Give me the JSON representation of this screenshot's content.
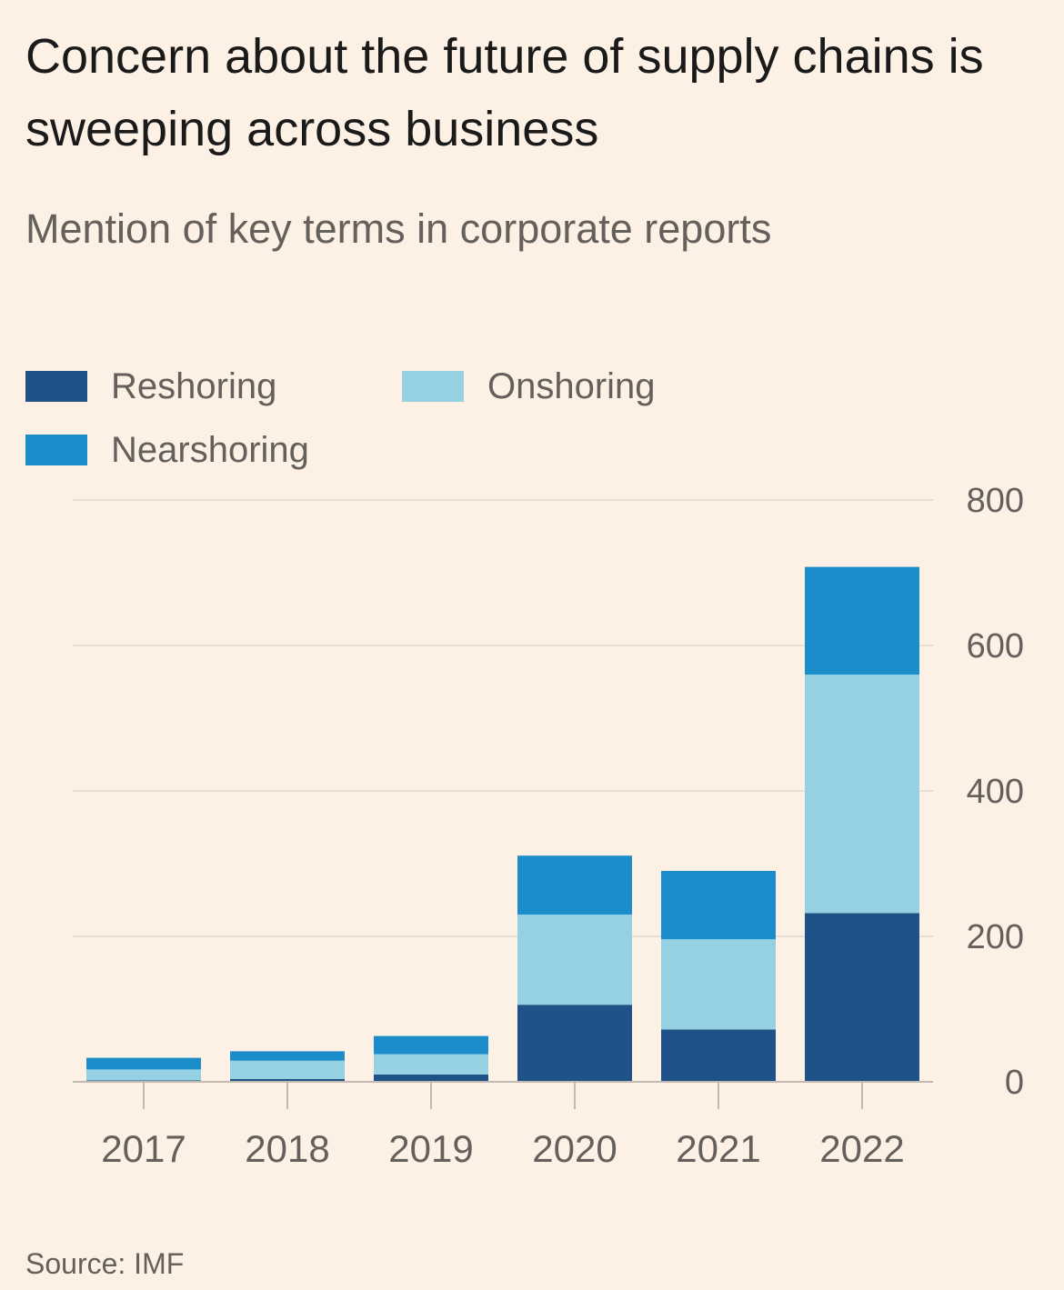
{
  "title": "Concern about the future of supply chains is sweeping across business",
  "subtitle": "Mention of key terms in corporate reports",
  "source": "Source: IMF",
  "legend": [
    {
      "label": "Reshoring",
      "color": "#1f5289"
    },
    {
      "label": "Onshoring",
      "color": "#96d1e3"
    },
    {
      "label": "Nearshoring",
      "color": "#1b8dcb"
    }
  ],
  "colors": {
    "background": "#fdf1e6",
    "gridline": "#e8ddd2",
    "axis": "#c2b9b1",
    "text": "#66605c"
  },
  "chart_data": {
    "type": "bar",
    "stacked": true,
    "categories": [
      "2017",
      "2018",
      "2019",
      "2020",
      "2021",
      "2022"
    ],
    "series": [
      {
        "name": "Reshoring",
        "color": "#1f5289",
        "values": [
          2,
          4,
          10,
          106,
          72,
          232
        ]
      },
      {
        "name": "Onshoring",
        "color": "#96d1e3",
        "values": [
          15,
          25,
          28,
          124,
          124,
          328
        ]
      },
      {
        "name": "Nearshoring",
        "color": "#1b8dcb",
        "values": [
          16,
          13,
          25,
          81,
          94,
          148
        ]
      }
    ],
    "ylim": [
      0,
      800
    ],
    "yticks": [
      "0",
      "200",
      "400",
      "600",
      "800"
    ],
    "y_axis_side": "right",
    "grid": true,
    "legend_position": "top-left"
  }
}
